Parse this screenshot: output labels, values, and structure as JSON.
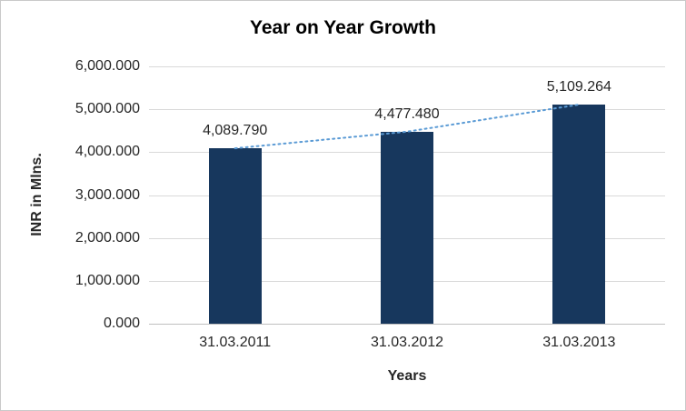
{
  "chart_data": {
    "type": "bar",
    "title": "Year on Year Growth",
    "xlabel": "Years",
    "ylabel": "INR in Mlns.",
    "categories": [
      "31.03.2011",
      "31.03.2012",
      "31.03.2013"
    ],
    "values": [
      4089.79,
      4477.48,
      5109.264
    ],
    "data_labels": [
      "4,089.790",
      "4,477.480",
      "5,109.264"
    ],
    "y_ticks": [
      {
        "value": 6000,
        "label": "6,000.000"
      },
      {
        "value": 5000,
        "label": "5,000.000"
      },
      {
        "value": 4000,
        "label": "4,000.000"
      },
      {
        "value": 3000,
        "label": "3,000.000"
      },
      {
        "value": 2000,
        "label": "2,000.000"
      },
      {
        "value": 1000,
        "label": "1,000.000"
      },
      {
        "value": 0,
        "label": "0.000"
      }
    ],
    "ylim": [
      0,
      6000
    ],
    "grid": true,
    "legend": "none",
    "trendline": true,
    "colors": {
      "bar": "#17375d",
      "trendline": "#5b9bd5",
      "gridline": "#d9d9d9",
      "axis_line": "#bfbfbf",
      "text": "#262626"
    }
  }
}
